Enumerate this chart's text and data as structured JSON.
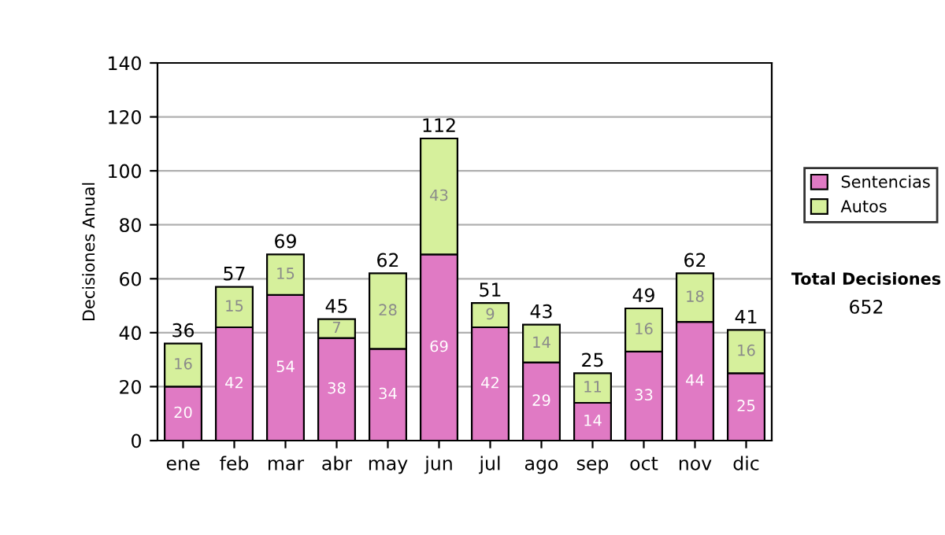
{
  "chart_data": {
    "type": "bar",
    "stacked": true,
    "ylabel": "Decisiones Anual",
    "categories": [
      "ene",
      "feb",
      "mar",
      "abr",
      "may",
      "jun",
      "jul",
      "ago",
      "sep",
      "oct",
      "nov",
      "dic"
    ],
    "series": [
      {
        "name": "Sentencias",
        "color": "#e07ac4",
        "values": [
          20,
          42,
          54,
          38,
          34,
          69,
          42,
          29,
          14,
          33,
          44,
          25
        ]
      },
      {
        "name": "Autos",
        "color": "#d6f09c",
        "values": [
          16,
          15,
          15,
          7,
          28,
          43,
          9,
          14,
          11,
          16,
          18,
          16
        ]
      }
    ],
    "totals": [
      "36",
      "57",
      "69",
      "45",
      "62",
      "112",
      "51",
      "43",
      "25",
      "49",
      "62",
      "41"
    ],
    "data_labels": true,
    "ylim": [
      0,
      140
    ],
    "yticks": [
      0,
      20,
      40,
      60,
      80,
      100,
      120,
      140
    ],
    "grid": "y",
    "legend": "right",
    "annotations": [
      "Total Decisiones",
      "652"
    ]
  }
}
